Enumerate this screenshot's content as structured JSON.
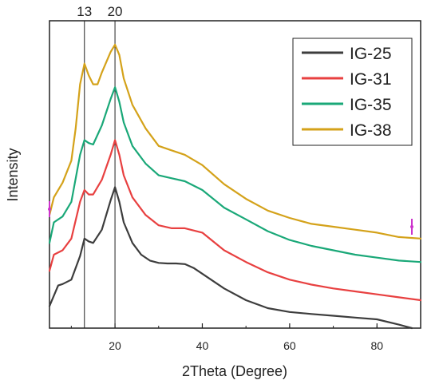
{
  "chart_data": {
    "type": "line",
    "title": "",
    "xlabel": "2Theta (Degree)",
    "ylabel": "Intensity",
    "xlim": [
      5,
      90
    ],
    "ylim": [
      0,
      1
    ],
    "x_ticks": [
      20,
      40,
      60,
      80
    ],
    "y_ticks_shown": false,
    "grid": false,
    "legend_position": "top-right",
    "reference_lines": [
      {
        "x": 13,
        "label": "13"
      },
      {
        "x": 20,
        "label": "20"
      }
    ],
    "series": [
      {
        "name": "IG-25",
        "color": "#3d3d3d",
        "points": [
          [
            5,
            0.075
          ],
          [
            7,
            0.145
          ],
          [
            8,
            0.15
          ],
          [
            10,
            0.165
          ],
          [
            12,
            0.245
          ],
          [
            13,
            0.305
          ],
          [
            14,
            0.295
          ],
          [
            15,
            0.29
          ],
          [
            17,
            0.335
          ],
          [
            19,
            0.435
          ],
          [
            20,
            0.48
          ],
          [
            21,
            0.43
          ],
          [
            22,
            0.36
          ],
          [
            24,
            0.29
          ],
          [
            26,
            0.25
          ],
          [
            28,
            0.23
          ],
          [
            30,
            0.222
          ],
          [
            32,
            0.22
          ],
          [
            34,
            0.22
          ],
          [
            36,
            0.218
          ],
          [
            38,
            0.205
          ],
          [
            40,
            0.185
          ],
          [
            45,
            0.135
          ],
          [
            50,
            0.095
          ],
          [
            55,
            0.068
          ],
          [
            60,
            0.055
          ],
          [
            65,
            0.048
          ],
          [
            70,
            0.042
          ],
          [
            75,
            0.036
          ],
          [
            80,
            0.03
          ],
          [
            85,
            0.012
          ],
          [
            88,
            0.0
          ]
        ]
      },
      {
        "name": "IG-31",
        "color": "#e84040",
        "points": [
          [
            5,
            0.195
          ],
          [
            6,
            0.25
          ],
          [
            8,
            0.265
          ],
          [
            10,
            0.305
          ],
          [
            12,
            0.43
          ],
          [
            13,
            0.47
          ],
          [
            14,
            0.455
          ],
          [
            15,
            0.455
          ],
          [
            17,
            0.505
          ],
          [
            19,
            0.59
          ],
          [
            20,
            0.64
          ],
          [
            21,
            0.59
          ],
          [
            22,
            0.52
          ],
          [
            24,
            0.445
          ],
          [
            27,
            0.385
          ],
          [
            30,
            0.35
          ],
          [
            33,
            0.34
          ],
          [
            36,
            0.34
          ],
          [
            40,
            0.325
          ],
          [
            45,
            0.265
          ],
          [
            50,
            0.225
          ],
          [
            55,
            0.19
          ],
          [
            60,
            0.165
          ],
          [
            65,
            0.148
          ],
          [
            70,
            0.135
          ],
          [
            75,
            0.125
          ],
          [
            80,
            0.115
          ],
          [
            85,
            0.105
          ],
          [
            90,
            0.095
          ]
        ]
      },
      {
        "name": "IG-35",
        "color": "#1aa878",
        "points": [
          [
            5,
            0.29
          ],
          [
            6,
            0.36
          ],
          [
            8,
            0.38
          ],
          [
            10,
            0.43
          ],
          [
            12,
            0.59
          ],
          [
            13,
            0.64
          ],
          [
            14,
            0.63
          ],
          [
            15,
            0.625
          ],
          [
            17,
            0.69
          ],
          [
            19,
            0.78
          ],
          [
            20,
            0.82
          ],
          [
            21,
            0.77
          ],
          [
            22,
            0.7
          ],
          [
            24,
            0.62
          ],
          [
            27,
            0.56
          ],
          [
            30,
            0.52
          ],
          [
            33,
            0.51
          ],
          [
            36,
            0.5
          ],
          [
            40,
            0.47
          ],
          [
            45,
            0.41
          ],
          [
            50,
            0.37
          ],
          [
            55,
            0.33
          ],
          [
            60,
            0.3
          ],
          [
            65,
            0.28
          ],
          [
            70,
            0.265
          ],
          [
            75,
            0.25
          ],
          [
            80,
            0.24
          ],
          [
            85,
            0.23
          ],
          [
            90,
            0.225
          ]
        ]
      },
      {
        "name": "IG-38",
        "color": "#d4a21a",
        "points": [
          [
            5,
            0.385
          ],
          [
            6,
            0.445
          ],
          [
            8,
            0.495
          ],
          [
            10,
            0.57
          ],
          [
            11,
            0.68
          ],
          [
            12,
            0.83
          ],
          [
            13,
            0.9
          ],
          [
            14,
            0.86
          ],
          [
            15,
            0.83
          ],
          [
            16,
            0.83
          ],
          [
            17,
            0.87
          ],
          [
            19,
            0.94
          ],
          [
            20,
            0.965
          ],
          [
            21,
            0.93
          ],
          [
            22,
            0.85
          ],
          [
            24,
            0.76
          ],
          [
            27,
            0.68
          ],
          [
            30,
            0.62
          ],
          [
            33,
            0.605
          ],
          [
            36,
            0.59
          ],
          [
            40,
            0.555
          ],
          [
            45,
            0.49
          ],
          [
            50,
            0.44
          ],
          [
            55,
            0.4
          ],
          [
            60,
            0.375
          ],
          [
            65,
            0.355
          ],
          [
            70,
            0.345
          ],
          [
            75,
            0.335
          ],
          [
            80,
            0.325
          ],
          [
            85,
            0.31
          ],
          [
            90,
            0.305
          ]
        ]
      }
    ]
  }
}
